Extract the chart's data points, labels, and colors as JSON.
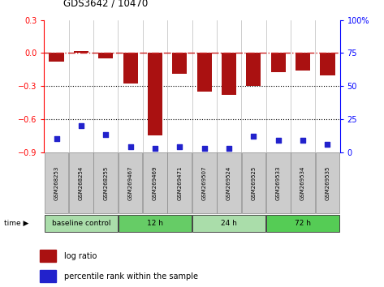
{
  "title": "GDS3642 / 10470",
  "samples": [
    "GSM268253",
    "GSM268254",
    "GSM268255",
    "GSM269467",
    "GSM269469",
    "GSM269471",
    "GSM269507",
    "GSM269524",
    "GSM269525",
    "GSM269533",
    "GSM269534",
    "GSM269535"
  ],
  "log_ratio": [
    -0.08,
    0.02,
    -0.05,
    -0.28,
    -0.75,
    -0.19,
    -0.35,
    -0.38,
    -0.3,
    -0.17,
    -0.16,
    -0.2
  ],
  "percentile_rank": [
    10,
    20,
    13,
    4,
    3,
    4,
    3,
    3,
    12,
    9,
    9,
    6
  ],
  "bar_color": "#aa1111",
  "dot_color": "#2222cc",
  "ref_line_color": "#cc2222",
  "ylim_left": [
    -0.9,
    0.3
  ],
  "ylim_right": [
    0,
    100
  ],
  "groups": [
    {
      "label": "baseline control",
      "start": 0,
      "end": 3,
      "color": "#aaddaa"
    },
    {
      "label": "12 h",
      "start": 3,
      "end": 6,
      "color": "#66cc66"
    },
    {
      "label": "24 h",
      "start": 6,
      "end": 9,
      "color": "#aaddaa"
    },
    {
      "label": "72 h",
      "start": 9,
      "end": 12,
      "color": "#55cc55"
    }
  ],
  "dotted_lines": [
    -0.3,
    -0.6
  ],
  "right_ticks": [
    0,
    25,
    50,
    75,
    100
  ],
  "left_ticks": [
    -0.9,
    -0.6,
    -0.3,
    0.0,
    0.3
  ],
  "sample_box_color": "#cccccc",
  "sample_box_edge": "#888888"
}
